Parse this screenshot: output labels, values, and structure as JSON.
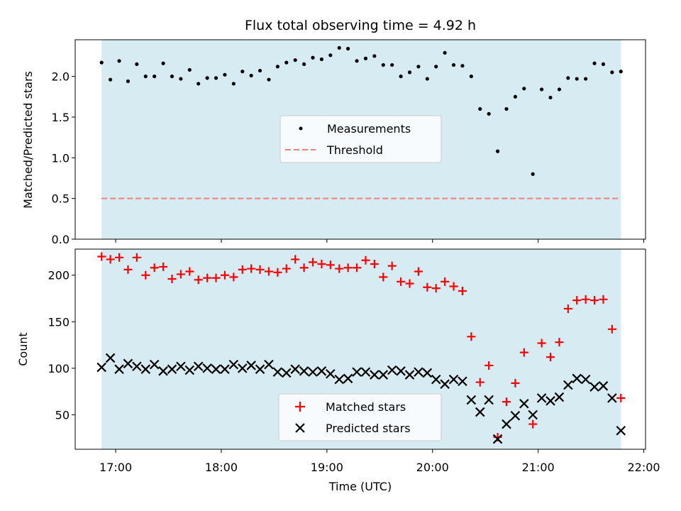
{
  "chart_data": [
    {
      "type": "scatter",
      "title": "Flux total observing time = 4.92 h",
      "xlabel": "",
      "ylabel": "Matched/Predicted stars",
      "xlim": [
        "16:37",
        "22:01"
      ],
      "ylim": [
        0,
        2.45
      ],
      "yticks": [
        "0.0",
        "0.5",
        "1.0",
        "1.5",
        "2.0"
      ],
      "xticks": [
        "17:00",
        "18:00",
        "19:00",
        "20:00",
        "21:00",
        "22:00"
      ],
      "shaded_range": [
        "16:52",
        "21:47"
      ],
      "threshold": 0.5,
      "legend": {
        "placement": "center",
        "entries": [
          "Measurements",
          "Threshold"
        ]
      },
      "series": [
        {
          "name": "Measurements",
          "color": "#000000",
          "x": [
            "16:52",
            "16:57",
            "17:02",
            "17:07",
            "17:12",
            "17:17",
            "17:22",
            "17:27",
            "17:32",
            "17:37",
            "17:42",
            "17:47",
            "17:52",
            "17:57",
            "18:02",
            "18:07",
            "18:12",
            "18:17",
            "18:22",
            "18:27",
            "18:32",
            "18:37",
            "18:42",
            "18:47",
            "18:52",
            "18:57",
            "19:02",
            "19:07",
            "19:12",
            "19:17",
            "19:22",
            "19:27",
            "19:32",
            "19:37",
            "19:42",
            "19:47",
            "19:52",
            "19:57",
            "20:02",
            "20:07",
            "20:12",
            "20:17",
            "20:22",
            "20:27",
            "20:32",
            "20:37",
            "20:42",
            "20:47",
            "20:52",
            "20:57",
            "21:02",
            "21:07",
            "21:12",
            "21:17",
            "21:22",
            "21:27",
            "21:32",
            "21:37",
            "21:42",
            "21:47"
          ],
          "y": [
            2.17,
            1.96,
            2.19,
            1.94,
            2.15,
            2.0,
            2.0,
            2.16,
            2.0,
            1.97,
            2.08,
            1.91,
            1.98,
            1.98,
            2.02,
            1.91,
            2.06,
            2.01,
            2.07,
            1.96,
            2.12,
            2.17,
            2.2,
            2.15,
            2.23,
            2.21,
            2.26,
            2.35,
            2.34,
            2.19,
            2.22,
            2.25,
            2.14,
            2.14,
            2.0,
            2.05,
            2.12,
            1.97,
            2.12,
            2.29,
            2.14,
            2.13,
            2.0,
            1.6,
            1.54,
            1.08,
            1.6,
            1.75,
            1.85,
            0.8,
            1.84,
            1.74,
            1.84,
            1.98,
            1.97,
            1.97,
            2.16,
            2.15,
            2.05,
            2.06
          ]
        },
        {
          "name": "Threshold",
          "color": "#f08080",
          "x": [
            "16:52",
            "21:47"
          ],
          "y": [
            0.5,
            0.5
          ]
        }
      ]
    },
    {
      "type": "scatter",
      "title": "",
      "xlabel": "Time (UTC)",
      "ylabel": "Count",
      "xlim": [
        "16:37",
        "22:01"
      ],
      "ylim": [
        13,
        228
      ],
      "yticks": [
        "50",
        "100",
        "150",
        "200"
      ],
      "xticks": [
        "17:00",
        "18:00",
        "19:00",
        "20:00",
        "21:00",
        "22:00"
      ],
      "shaded_range": [
        "16:52",
        "21:47"
      ],
      "legend": {
        "placement": "lower-center",
        "entries": [
          "Matched stars",
          "Predicted stars"
        ]
      },
      "series": [
        {
          "name": "Matched stars",
          "color": "#ff0000",
          "x": [
            "16:52",
            "16:57",
            "17:02",
            "17:07",
            "17:12",
            "17:17",
            "17:22",
            "17:27",
            "17:32",
            "17:37",
            "17:42",
            "17:47",
            "17:52",
            "17:57",
            "18:02",
            "18:07",
            "18:12",
            "18:17",
            "18:22",
            "18:27",
            "18:32",
            "18:37",
            "18:42",
            "18:47",
            "18:52",
            "18:57",
            "19:02",
            "19:07",
            "19:12",
            "19:17",
            "19:22",
            "19:27",
            "19:32",
            "19:37",
            "19:42",
            "19:47",
            "19:52",
            "19:57",
            "20:02",
            "20:07",
            "20:12",
            "20:17",
            "20:22",
            "20:27",
            "20:32",
            "20:37",
            "20:42",
            "20:47",
            "20:52",
            "20:57",
            "21:02",
            "21:07",
            "21:12",
            "21:17",
            "21:22",
            "21:27",
            "21:32",
            "21:37",
            "21:42",
            "21:47"
          ],
          "y": [
            220,
            217,
            219,
            206,
            219,
            200,
            208,
            209,
            196,
            201,
            204,
            195,
            197,
            197,
            200,
            198,
            206,
            207,
            206,
            204,
            203,
            207,
            217,
            208,
            214,
            212,
            211,
            207,
            208,
            208,
            216,
            212,
            198,
            210,
            193,
            191,
            204,
            187,
            186,
            193,
            188,
            183,
            134,
            85,
            103,
            26,
            64,
            84,
            117,
            40,
            127,
            112,
            128,
            164,
            173,
            174,
            173,
            174,
            142,
            68
          ]
        },
        {
          "name": "Predicted stars",
          "color": "#000000",
          "x": [
            "16:52",
            "16:57",
            "17:02",
            "17:07",
            "17:12",
            "17:17",
            "17:22",
            "17:27",
            "17:32",
            "17:37",
            "17:42",
            "17:47",
            "17:52",
            "17:57",
            "18:02",
            "18:07",
            "18:12",
            "18:17",
            "18:22",
            "18:27",
            "18:32",
            "18:37",
            "18:42",
            "18:47",
            "18:52",
            "18:57",
            "19:02",
            "19:07",
            "19:12",
            "19:17",
            "19:22",
            "19:27",
            "19:32",
            "19:37",
            "19:42",
            "19:47",
            "19:52",
            "19:57",
            "20:02",
            "20:07",
            "20:12",
            "20:17",
            "20:22",
            "20:27",
            "20:32",
            "20:37",
            "20:42",
            "20:47",
            "20:52",
            "20:57",
            "21:02",
            "21:07",
            "21:12",
            "21:17",
            "21:22",
            "21:27",
            "21:32",
            "21:37",
            "21:42",
            "21:47"
          ],
          "y": [
            101,
            111,
            99,
            105,
            102,
            99,
            104,
            97,
            99,
            102,
            98,
            102,
            100,
            99,
            99,
            104,
            100,
            103,
            99,
            104,
            96,
            95,
            99,
            97,
            96,
            97,
            94,
            88,
            89,
            96,
            96,
            93,
            93,
            98,
            97,
            93,
            96,
            95,
            88,
            83,
            88,
            86,
            66,
            53,
            66,
            24,
            40,
            49,
            62,
            50,
            68,
            65,
            69,
            82,
            89,
            88,
            80,
            81,
            68,
            33
          ]
        }
      ]
    }
  ]
}
